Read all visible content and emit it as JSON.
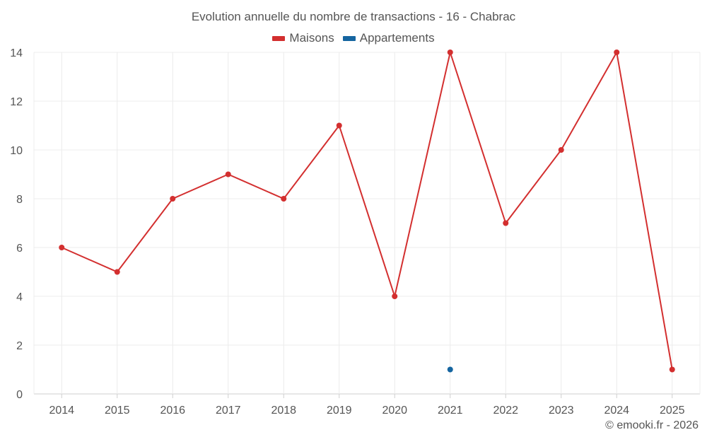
{
  "chart_data": {
    "type": "line",
    "title": "Evolution annuelle du nombre de transactions - 16 - Chabrac",
    "categories": [
      "2014",
      "2015",
      "2016",
      "2017",
      "2018",
      "2019",
      "2020",
      "2021",
      "2022",
      "2023",
      "2024",
      "2025"
    ],
    "series": [
      {
        "name": "Maisons",
        "color": "#d32f2f",
        "values": [
          6,
          5,
          8,
          9,
          8,
          11,
          4,
          14,
          7,
          10,
          14,
          1
        ]
      },
      {
        "name": "Appartements",
        "color": "#1565a0",
        "values": [
          null,
          null,
          null,
          null,
          null,
          null,
          null,
          1,
          null,
          null,
          null,
          null
        ]
      }
    ],
    "ylim": [
      0,
      14
    ],
    "yticks": [
      "0",
      "2",
      "4",
      "6",
      "8",
      "10",
      "12",
      "14"
    ],
    "grid": true,
    "legend": "top-center",
    "xlabel": "",
    "ylabel": ""
  },
  "credit": "© emooki.fr - 2026"
}
